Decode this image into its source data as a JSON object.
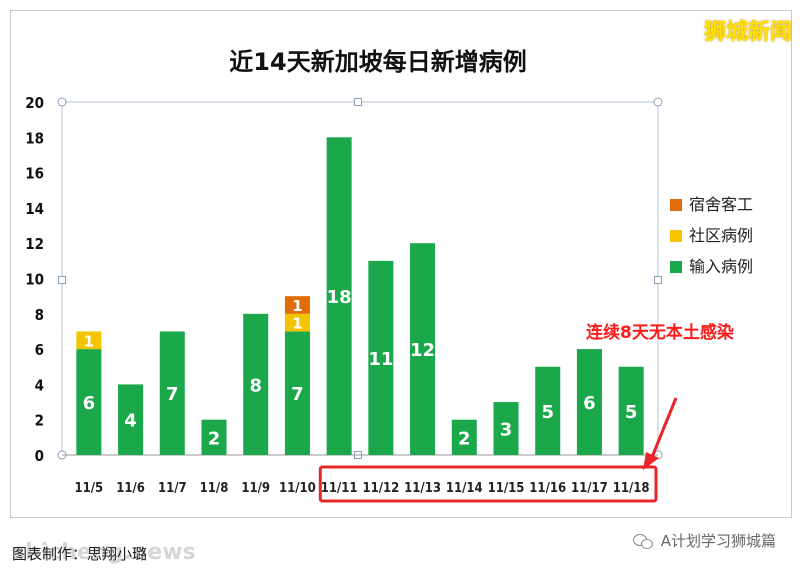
{
  "brand": "狮城新闻",
  "callout": "连续8天无本土感染",
  "footer": {
    "caption": "图表制作：思翔小璐",
    "watermark": "shicheng.news",
    "account": "A计划学习狮城篇"
  },
  "colors": {
    "imported": "#1aa84a",
    "community": "#f5c400",
    "dormitory": "#e36c0a",
    "highlight_box": "#e8262a",
    "arrow": "#e8262a"
  },
  "chart_data": {
    "type": "bar",
    "stacked": true,
    "title": "近14天新加坡每日新增病例",
    "categories": [
      "11/5",
      "11/6",
      "11/7",
      "11/8",
      "11/9",
      "11/10",
      "11/11",
      "11/12",
      "11/13",
      "11/14",
      "11/15",
      "11/16",
      "11/17",
      "11/18"
    ],
    "series": [
      {
        "name": "输入病例",
        "color": "#1aa84a",
        "values": [
          6,
          4,
          7,
          2,
          8,
          7,
          18,
          11,
          12,
          2,
          3,
          5,
          6,
          5
        ]
      },
      {
        "name": "社区病例",
        "color": "#f5c400",
        "values": [
          1,
          0,
          0,
          0,
          0,
          1,
          0,
          0,
          0,
          0,
          0,
          0,
          0,
          0
        ]
      },
      {
        "name": "宿舍客工",
        "color": "#e36c0a",
        "values": [
          0,
          0,
          0,
          0,
          0,
          1,
          0,
          0,
          0,
          0,
          0,
          0,
          0,
          0
        ]
      }
    ],
    "legend_order": [
      "宿舍客工",
      "社区病例",
      "输入病例"
    ],
    "legend_position": "right",
    "ylim": [
      0,
      20
    ],
    "yticks": [
      0,
      2,
      4,
      6,
      8,
      10,
      12,
      14,
      16,
      18,
      20
    ],
    "grid": false,
    "highlight_categories": [
      "11/11",
      "11/12",
      "11/13",
      "11/14",
      "11/15",
      "11/16",
      "11/17",
      "11/18"
    ]
  }
}
